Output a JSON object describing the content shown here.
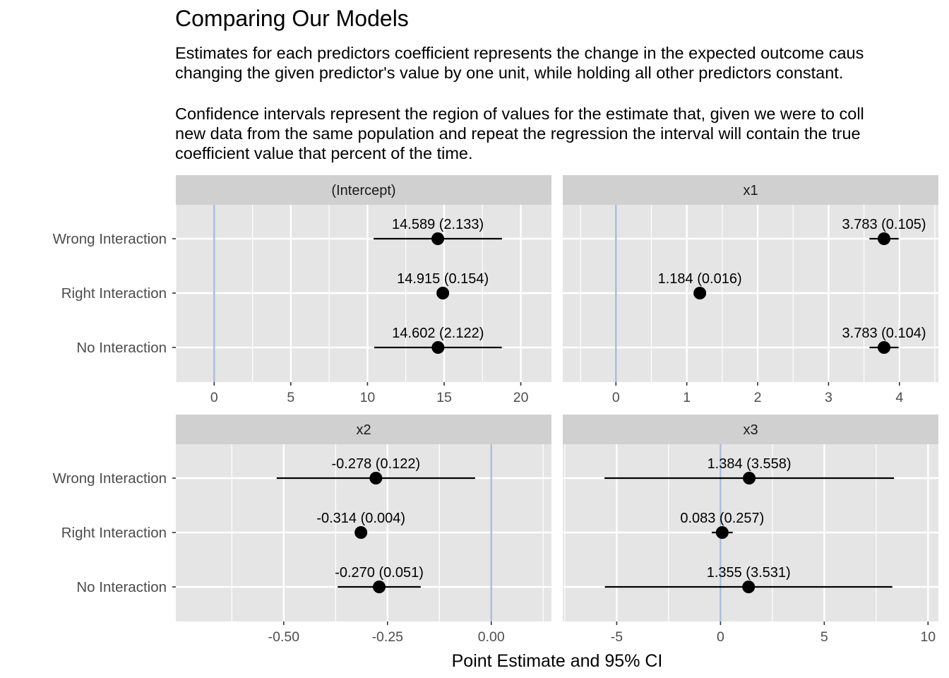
{
  "title": "Comparing Our Models",
  "subtitle": {
    "p1_line1": "Estimates for each predictors coefficient represents the change in the expected outcome caus",
    "p1_line2": "changing the given predictor's value by one unit, while holding all other predictors constant.",
    "p2_line1": "Confidence intervals represent the region of values for the estimate that, given we were to coll",
    "p2_line2": "new data from the same population and repeat the regression the interval will contain the true",
    "p2_line3": "coefficient value that percent of the time."
  },
  "colors": {
    "panel_bg": "#e5e5e5",
    "strip_bg": "#d0d0d0",
    "grid": "#ffffff",
    "zero_line": "#a6bddb",
    "point": "#000000",
    "axis_text": "#4d4d4d"
  },
  "chart_data": {
    "type": "dot-errorbar",
    "xlabel": "Point Estimate and 95% CI",
    "models": [
      "Wrong Interaction",
      "Right Interaction",
      "No Interaction"
    ],
    "panels": [
      {
        "name": "(Intercept)",
        "xlim": [
          -2.5,
          22.0
        ],
        "ticks": [
          0,
          5,
          10,
          15,
          20
        ],
        "tick_labels": [
          "0",
          "5",
          "10",
          "15",
          "20"
        ],
        "points": [
          {
            "model": "Wrong Interaction",
            "estimate": 14.589,
            "low": 10.4,
            "high": 18.77,
            "label": "14.589 (2.133)"
          },
          {
            "model": "Right Interaction",
            "estimate": 14.915,
            "low": 14.62,
            "high": 15.21,
            "label": "14.915 (0.154)"
          },
          {
            "model": "No Interaction",
            "estimate": 14.602,
            "low": 10.44,
            "high": 18.76,
            "label": "14.602 (2.122)"
          }
        ]
      },
      {
        "name": "x1",
        "xlim": [
          -0.75,
          4.55
        ],
        "ticks": [
          0,
          1,
          2,
          3,
          4
        ],
        "tick_labels": [
          "0",
          "1",
          "2",
          "3",
          "4"
        ],
        "points": [
          {
            "model": "Wrong Interaction",
            "estimate": 3.783,
            "low": 3.577,
            "high": 3.989,
            "label": "3.783 (0.105)"
          },
          {
            "model": "Right Interaction",
            "estimate": 1.184,
            "low": 1.153,
            "high": 1.215,
            "label": "1.184 (0.016)"
          },
          {
            "model": "No Interaction",
            "estimate": 3.783,
            "low": 3.579,
            "high": 3.987,
            "label": "3.783 (0.104)"
          }
        ]
      },
      {
        "name": "x2",
        "xlim": [
          -0.76,
          0.145
        ],
        "ticks": [
          -0.5,
          -0.25,
          0.0
        ],
        "tick_labels": [
          "-0.50",
          "-0.25",
          "0.00"
        ],
        "points": [
          {
            "model": "Wrong Interaction",
            "estimate": -0.278,
            "low": -0.517,
            "high": -0.039,
            "label": "-0.278 (0.122)"
          },
          {
            "model": "Right Interaction",
            "estimate": -0.314,
            "low": -0.322,
            "high": -0.306,
            "label": "-0.314 (0.004)"
          },
          {
            "model": "No Interaction",
            "estimate": -0.27,
            "low": -0.37,
            "high": -0.17,
            "label": "-0.270 (0.051)"
          }
        ]
      },
      {
        "name": "x3",
        "xlim": [
          -7.6,
          10.5
        ],
        "ticks": [
          -5,
          0,
          5,
          10
        ],
        "tick_labels": [
          "-5",
          "0",
          "5",
          "10"
        ],
        "points": [
          {
            "model": "Wrong Interaction",
            "estimate": 1.384,
            "low": -5.59,
            "high": 8.36,
            "label": "1.384 (3.558)"
          },
          {
            "model": "Right Interaction",
            "estimate": 0.083,
            "low": -0.42,
            "high": 0.59,
            "label": "0.083 (0.257)"
          },
          {
            "model": "No Interaction",
            "estimate": 1.355,
            "low": -5.57,
            "high": 8.28,
            "label": "1.355 (3.531)"
          }
        ]
      }
    ]
  }
}
